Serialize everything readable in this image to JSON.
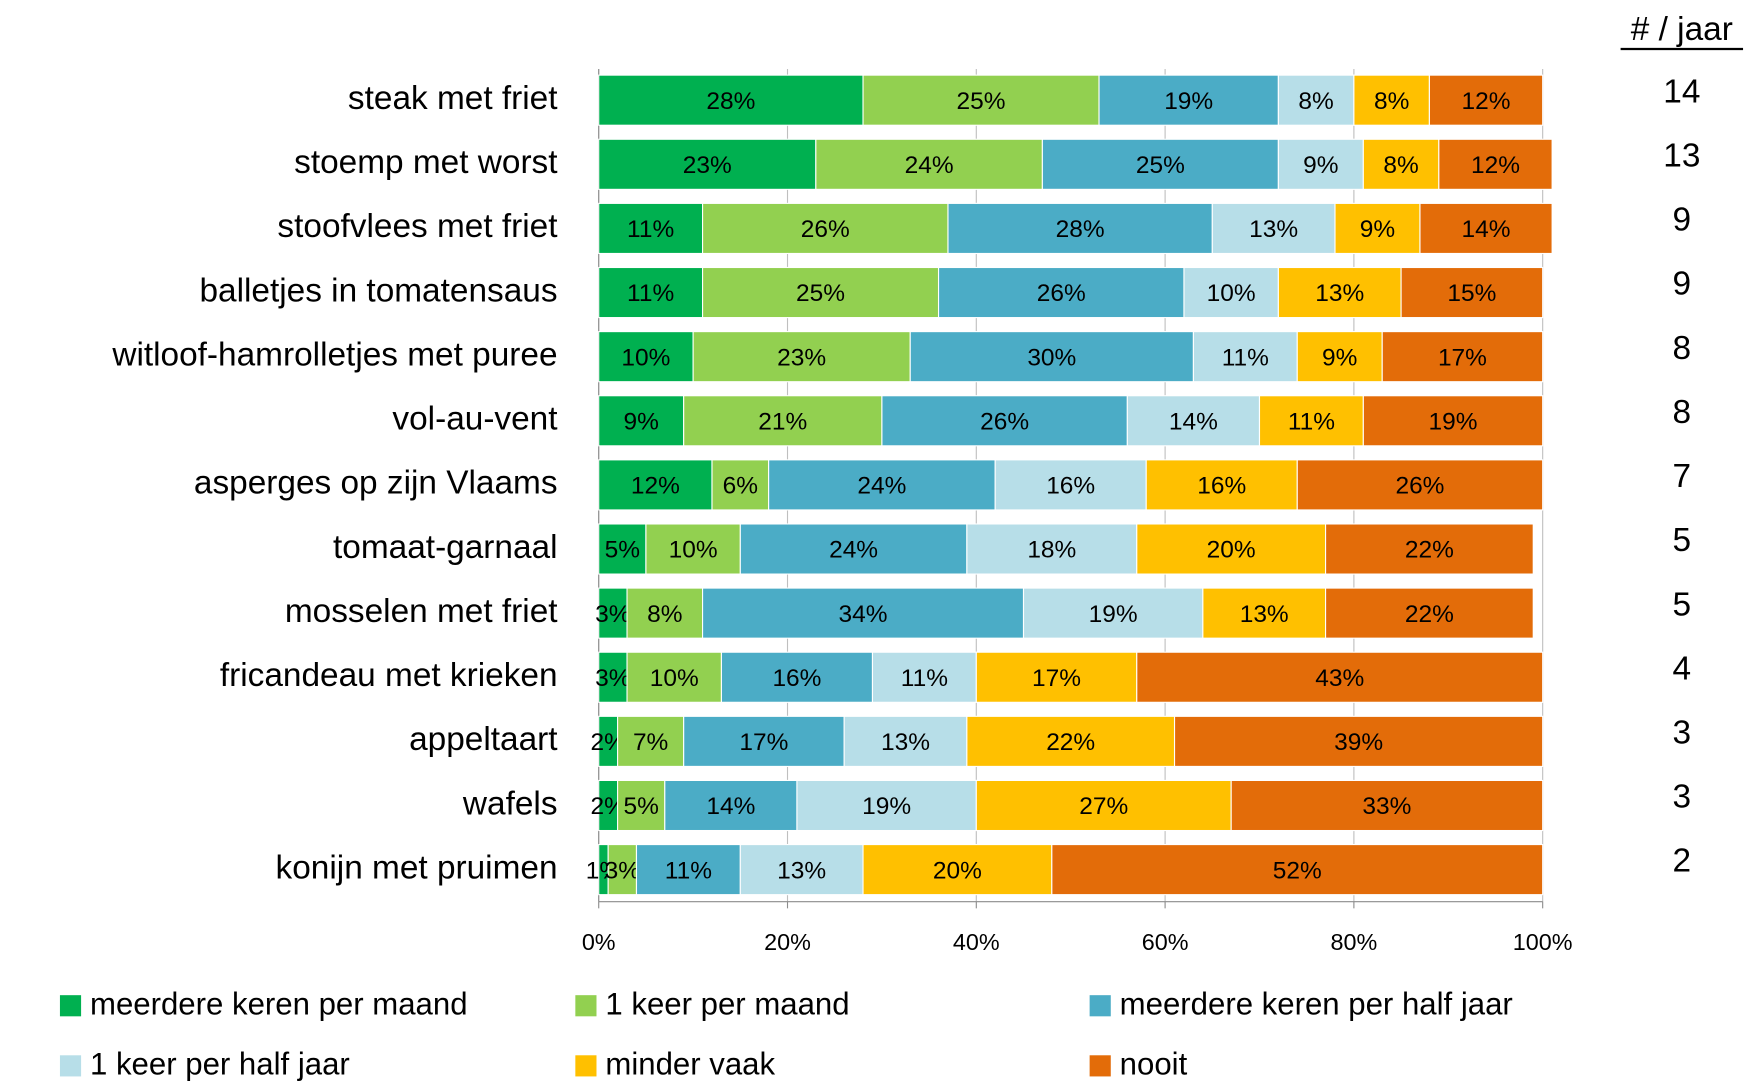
{
  "chart_data": {
    "type": "bar",
    "orientation": "horizontal",
    "stacked": true,
    "categories": [
      "steak met friet",
      "stoemp met worst",
      "stoofvlees met friet",
      "balletjes in tomatensaus",
      "witloof-hamrolletjes met puree",
      "vol-au-vent",
      "asperges op zijn Vlaams",
      "tomaat-garnaal",
      "mosselen met friet",
      "fricandeau met krieken",
      "appeltaart",
      "wafels",
      "konijn met pruimen"
    ],
    "series": [
      {
        "name": "meerdere keren per maand",
        "color": "#00b050",
        "values": [
          28,
          23,
          11,
          11,
          10,
          9,
          12,
          5,
          3,
          3,
          2,
          2,
          1
        ],
        "value_labels": [
          "28%",
          "23%",
          "11%",
          "11%",
          "10%",
          "9%",
          "12%",
          "5%",
          "3%",
          "3%",
          "2%",
          "2%",
          "1%"
        ]
      },
      {
        "name": "1 keer per maand",
        "color": "#92d050",
        "values": [
          25,
          24,
          26,
          25,
          23,
          21,
          6,
          10,
          8,
          10,
          7,
          5,
          3
        ],
        "value_labels": [
          "25%",
          "24%",
          "26%",
          "25%",
          "23%",
          "21%",
          "6%",
          "10%",
          "8%",
          "10%",
          "7%",
          "5%",
          "3%"
        ]
      },
      {
        "name": "meerdere keren per half jaar",
        "color": "#4bacc6",
        "values": [
          19,
          25,
          28,
          26,
          30,
          26,
          24,
          24,
          34,
          16,
          17,
          14,
          11
        ],
        "value_labels": [
          "19%",
          "25%",
          "28%",
          "26%",
          "30%",
          "26%",
          "24%",
          "24%",
          "34%",
          "16%",
          "17%",
          "14%",
          "11%"
        ]
      },
      {
        "name": "1 keer per half jaar",
        "color": "#b7dee8",
        "values": [
          8,
          9,
          13,
          10,
          11,
          14,
          16,
          18,
          19,
          11,
          13,
          19,
          13
        ],
        "value_labels": [
          "8%",
          "9%",
          "13%",
          "10%",
          "11%",
          "14%",
          "16%",
          "18%",
          "19%",
          "11%",
          "13%",
          "19%",
          "13%"
        ]
      },
      {
        "name": "minder vaak",
        "color": "#ffc000",
        "values": [
          8,
          8,
          9,
          13,
          9,
          11,
          16,
          20,
          13,
          17,
          22,
          27,
          20
        ],
        "value_labels": [
          "8%",
          "8%",
          "9%",
          "13%",
          "9%",
          "11%",
          "16%",
          "20%",
          "13%",
          "17%",
          "22%",
          "27%",
          "20%"
        ]
      },
      {
        "name": "nooit",
        "color": "#e36c09",
        "values": [
          12,
          12,
          14,
          15,
          17,
          19,
          26,
          22,
          22,
          43,
          39,
          33,
          52
        ],
        "value_labels": [
          "12%",
          "12%",
          "14%",
          "15%",
          "17%",
          "19%",
          "26%",
          "22%",
          "22%",
          "43%",
          "39%",
          "33%",
          "52%"
        ]
      }
    ],
    "xlim": [
      0,
      100
    ],
    "xticks": [
      {
        "value": 0,
        "label": "0%"
      },
      {
        "value": 20,
        "label": "20%"
      },
      {
        "value": 40,
        "label": "40%"
      },
      {
        "value": 60,
        "label": "60%"
      },
      {
        "value": 80,
        "label": "80%"
      },
      {
        "value": 100,
        "label": "100%"
      }
    ],
    "grid": true,
    "legend": "bottom",
    "side_column": {
      "title": "# / jaar",
      "values": [
        14,
        13,
        9,
        9,
        8,
        8,
        7,
        5,
        5,
        4,
        3,
        3,
        2
      ]
    }
  }
}
